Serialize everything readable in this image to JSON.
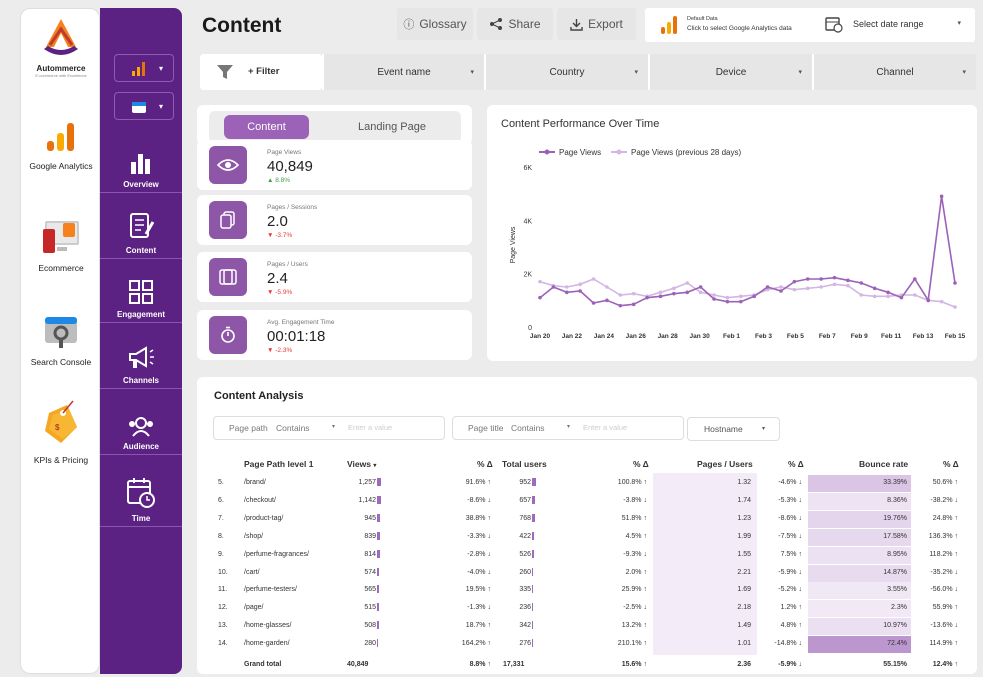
{
  "left_rail": {
    "brand": "Autommerce",
    "tagline": "E-commerce with Excellence",
    "items": [
      {
        "label": "Google Analytics"
      },
      {
        "label": "Ecommerce"
      },
      {
        "label": "Search Console"
      },
      {
        "label": "KPIs & Pricing"
      }
    ]
  },
  "sidebar": {
    "items": [
      {
        "label": "Overview"
      },
      {
        "label": "Content"
      },
      {
        "label": "Engagement"
      },
      {
        "label": "Channels"
      },
      {
        "label": "Audience"
      },
      {
        "label": "Time"
      }
    ]
  },
  "header": {
    "title": "Content",
    "buttons": {
      "glossary": "Glossary",
      "share": "Share",
      "export": "Export"
    },
    "date": {
      "default_label": "Default Data",
      "hint": "Click to select Google Analytics data",
      "range_label": "Select date range"
    }
  },
  "filters": {
    "add_filter": "+ Filter",
    "dropdowns": [
      "Event name",
      "Country",
      "Device",
      "Channel"
    ]
  },
  "tabs": {
    "content": "Content",
    "landing": "Landing Page"
  },
  "kpis": [
    {
      "label": "Page Views",
      "value": "40,849",
      "delta": "8.8%",
      "dir": "up"
    },
    {
      "label": "Pages / Sessions",
      "value": "2.0",
      "delta": "-3.7%",
      "dir": "down"
    },
    {
      "label": "Pages / Users",
      "value": "2.4",
      "delta": "-5.9%",
      "dir": "down"
    },
    {
      "label": "Avg. Engagement Time",
      "value": "00:01:18",
      "delta": "-2.3%",
      "dir": "down"
    }
  ],
  "chart_data": {
    "type": "line",
    "title": "Content Performance Over Time",
    "xlabel": "",
    "ylabel": "Page Views",
    "ylim": [
      0,
      6000
    ],
    "yticks": [
      "0",
      "2K",
      "4K",
      "6K"
    ],
    "xtick_labels": [
      "Jan 20",
      "Jan 22",
      "Jan 24",
      "Jan 26",
      "Jan 28",
      "Jan 30",
      "Feb 1",
      "Feb 3",
      "Feb 5",
      "Feb 7",
      "Feb 9",
      "Feb 11",
      "Feb 13",
      "Feb 15"
    ],
    "series": [
      {
        "name": "Page Views",
        "color": "#9b62b8",
        "values": [
          1100,
          1500,
          1300,
          1350,
          900,
          1000,
          800,
          850,
          1100,
          1150,
          1250,
          1300,
          1500,
          1050,
          950,
          950,
          1150,
          1500,
          1350,
          1700,
          1800,
          1800,
          1850,
          1750,
          1650,
          1450,
          1300,
          1100,
          1800,
          1000,
          4900,
          1650
        ]
      },
      {
        "name": "Page Views (previous 28 days)",
        "color": "#d3b6e3",
        "values": [
          1700,
          1550,
          1500,
          1600,
          1800,
          1500,
          1200,
          1250,
          1150,
          1300,
          1450,
          1650,
          1300,
          1200,
          1100,
          1150,
          1200,
          1400,
          1500,
          1400,
          1450,
          1500,
          1600,
          1550,
          1200,
          1150,
          1150,
          1200,
          1200,
          1000,
          950,
          750
        ]
      }
    ]
  },
  "analysis": {
    "title": "Content Analysis",
    "filter1": {
      "field": "Page path",
      "op": "Contains",
      "placeholder": "Enter a value"
    },
    "filter2": {
      "field": "Page title",
      "op": "Contains",
      "placeholder": "Enter a value"
    },
    "hostname": "Hostname",
    "headers": [
      "Page Path level 1",
      "Views",
      "% Δ",
      "Total users",
      "% Δ",
      "Pages / Users",
      "% Δ",
      "Bounce rate",
      "% Δ"
    ],
    "rows": [
      {
        "n": "5.",
        "path": "/brand/",
        "views": "1,257",
        "vd": "91.6%",
        "vdir": "up",
        "users": "952",
        "ud": "100.8%",
        "udir": "up",
        "ppu": "1.32",
        "pd": "-4.6%",
        "pdir": "down",
        "br": "33.39%",
        "bd": "50.6%",
        "bdir": "up"
      },
      {
        "n": "6.",
        "path": "/checkout/",
        "views": "1,142",
        "vd": "-8.6%",
        "vdir": "down",
        "users": "657",
        "ud": "-3.8%",
        "udir": "down",
        "ppu": "1.74",
        "pd": "-5.3%",
        "pdir": "down",
        "br": "8.36%",
        "bd": "-38.2%",
        "bdir": "down"
      },
      {
        "n": "7.",
        "path": "/product-tag/",
        "views": "945",
        "vd": "38.8%",
        "vdir": "up",
        "users": "768",
        "ud": "51.8%",
        "udir": "up",
        "ppu": "1.23",
        "pd": "-8.6%",
        "pdir": "down",
        "br": "19.76%",
        "bd": "24.8%",
        "bdir": "up"
      },
      {
        "n": "8.",
        "path": "/shop/",
        "views": "839",
        "vd": "-3.3%",
        "vdir": "down",
        "users": "422",
        "ud": "4.5%",
        "udir": "up",
        "ppu": "1.99",
        "pd": "-7.5%",
        "pdir": "down",
        "br": "17.58%",
        "bd": "136.3%",
        "bdir": "up"
      },
      {
        "n": "9.",
        "path": "/perfume-fragrances/",
        "views": "814",
        "vd": "-2.8%",
        "vdir": "down",
        "users": "526",
        "ud": "-9.3%",
        "udir": "down",
        "ppu": "1.55",
        "pd": "7.5%",
        "pdir": "up",
        "br": "8.95%",
        "bd": "118.2%",
        "bdir": "up"
      },
      {
        "n": "10.",
        "path": "/cart/",
        "views": "574",
        "vd": "-4.0%",
        "vdir": "down",
        "users": "260",
        "ud": "2.0%",
        "udir": "up",
        "ppu": "2.21",
        "pd": "-5.9%",
        "pdir": "down",
        "br": "14.87%",
        "bd": "-35.2%",
        "bdir": "down"
      },
      {
        "n": "11.",
        "path": "/perfume-testers/",
        "views": "565",
        "vd": "19.5%",
        "vdir": "up",
        "users": "335",
        "ud": "25.9%",
        "udir": "up",
        "ppu": "1.69",
        "pd": "-5.2%",
        "pdir": "down",
        "br": "3.55%",
        "bd": "-56.0%",
        "bdir": "down"
      },
      {
        "n": "12.",
        "path": "/page/",
        "views": "515",
        "vd": "-1.3%",
        "vdir": "down",
        "users": "236",
        "ud": "-2.5%",
        "udir": "down",
        "ppu": "2.18",
        "pd": "1.2%",
        "pdir": "up",
        "br": "2.3%",
        "bd": "55.9%",
        "bdir": "up"
      },
      {
        "n": "13.",
        "path": "/home-glasses/",
        "views": "508",
        "vd": "18.7%",
        "vdir": "up",
        "users": "342",
        "ud": "13.2%",
        "udir": "up",
        "ppu": "1.49",
        "pd": "4.8%",
        "pdir": "up",
        "br": "10.97%",
        "bd": "-13.6%",
        "bdir": "down"
      },
      {
        "n": "14.",
        "path": "/home-garden/",
        "views": "280",
        "vd": "164.2%",
        "vdir": "up",
        "users": "276",
        "ud": "210.1%",
        "udir": "up",
        "ppu": "1.01",
        "pd": "-14.8%",
        "pdir": "down",
        "br": "72.4%",
        "bd": "114.9%",
        "bdir": "up"
      }
    ],
    "total": {
      "label": "Grand total",
      "views": "40,849",
      "vd": "8.8%",
      "users": "17,331",
      "ud": "15.6%",
      "ppu": "2.36",
      "pd": "-5.9%",
      "br": "55.15%",
      "bd": "12.4%"
    }
  },
  "colors": {
    "purple": "#5c2283",
    "accent": "#8e56a7",
    "up": "#43a047",
    "down": "#e53935"
  }
}
